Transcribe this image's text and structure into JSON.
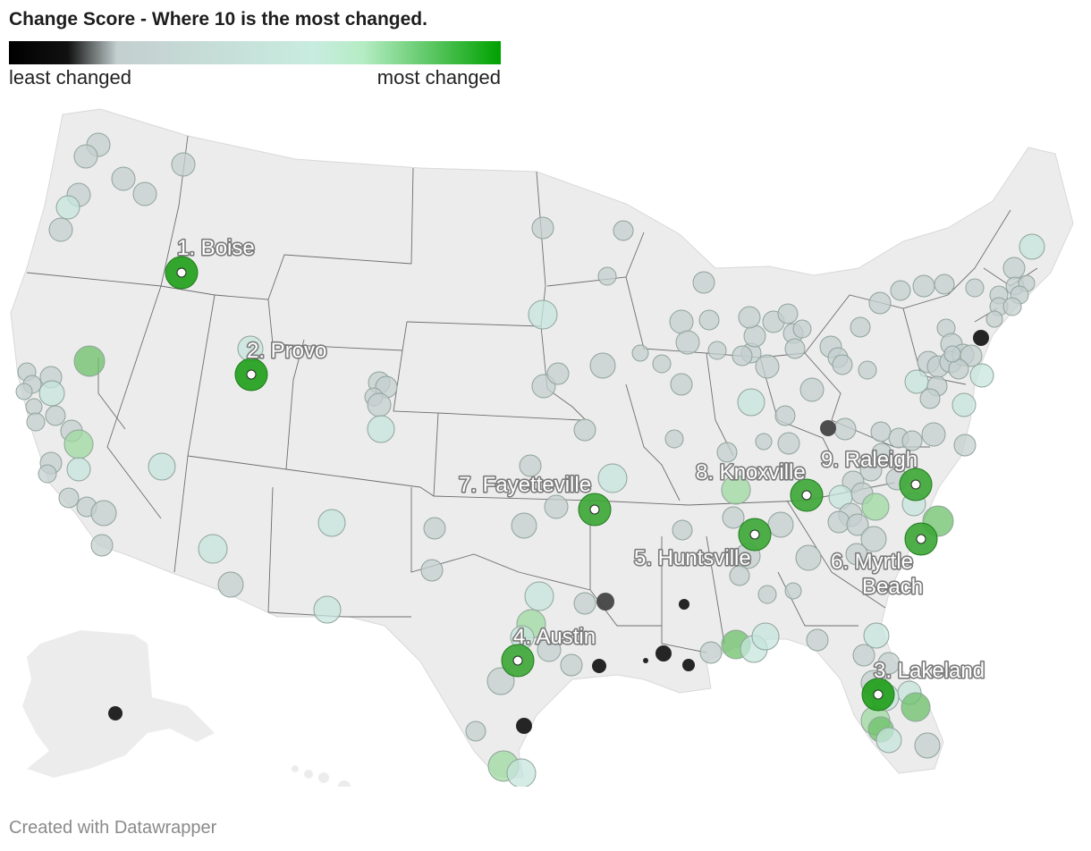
{
  "title": "Change Score - Where 10 is the most changed.",
  "legend": {
    "left_label": "least changed",
    "right_label": "most changed",
    "gradient": [
      "#000000",
      "#c4cfcf",
      "#c8ece0",
      "#9ee29a",
      "#00a100"
    ]
  },
  "footer": "Created with Datawrapper",
  "colors": {
    "land": "#ececec",
    "border": "#6e6e6e",
    "marker_stroke": "#6f7f78"
  },
  "ranked_cities": [
    {
      "label": "1. Boise",
      "rank": 1
    },
    {
      "label": "2. Provo",
      "rank": 2
    },
    {
      "label": "3. Lakeland",
      "rank": 3
    },
    {
      "label": "4. Austin",
      "rank": 4
    },
    {
      "label": "5. Huntsville",
      "rank": 5
    },
    {
      "label": "6. Myrtle",
      "rank": 6,
      "second_line": "Beach"
    },
    {
      "label": "7. Fayetteville",
      "rank": 7
    },
    {
      "label": "8. Knoxville",
      "rank": 8
    },
    {
      "label": "9. Raleigh",
      "rank": 9
    }
  ]
}
